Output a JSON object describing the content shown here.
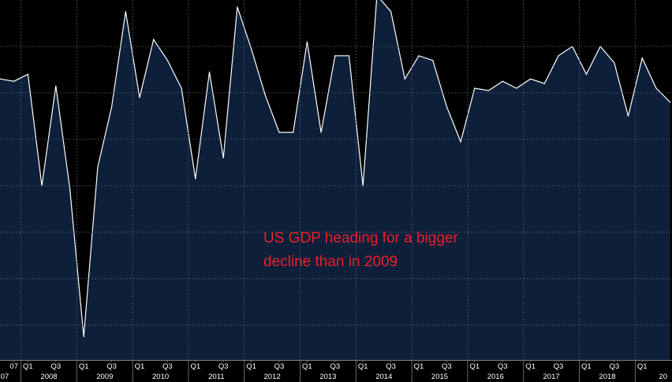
{
  "colors": {
    "background": "#000000",
    "area_fill": "#0e1f3a",
    "line": "#ffffff",
    "grid": "#4a5a70",
    "axis_text": "#ffffff",
    "annotation": "#e8202a"
  },
  "annotation": {
    "line1": "US GDP heading for a bigger",
    "line2": "decline than in 2009"
  },
  "chart_data": {
    "type": "area",
    "title": "",
    "xlabel": "",
    "ylabel": "",
    "ylim": [
      -9.5,
      6
    ],
    "grid": true,
    "x": [
      "2007 Q3",
      "2007 Q4",
      "2008 Q1",
      "2008 Q2",
      "2008 Q3",
      "2008 Q4",
      "2009 Q1",
      "2009 Q2",
      "2009 Q3",
      "2009 Q4",
      "2010 Q1",
      "2010 Q2",
      "2010 Q3",
      "2010 Q4",
      "2011 Q1",
      "2011 Q2",
      "2011 Q3",
      "2011 Q4",
      "2012 Q1",
      "2012 Q2",
      "2012 Q3",
      "2012 Q4",
      "2013 Q1",
      "2013 Q2",
      "2013 Q3",
      "2013 Q4",
      "2014 Q1",
      "2014 Q2",
      "2014 Q3",
      "2014 Q4",
      "2015 Q1",
      "2015 Q2",
      "2015 Q3",
      "2015 Q4",
      "2016 Q1",
      "2016 Q2",
      "2016 Q3",
      "2016 Q4",
      "2017 Q1",
      "2017 Q2",
      "2017 Q3",
      "2017 Q4",
      "2018 Q1",
      "2018 Q2",
      "2018 Q3",
      "2018 Q4",
      "2019 Q1",
      "2019 Q2",
      "2019 Q3"
    ],
    "values": [
      2.6,
      2.5,
      2.8,
      -2.0,
      2.3,
      -2.1,
      -8.5,
      -1.2,
      1.4,
      5.5,
      1.8,
      4.3,
      3.4,
      2.2,
      -1.7,
      2.9,
      -0.8,
      5.7,
      3.9,
      1.9,
      0.3,
      0.3,
      4.2,
      0.3,
      3.6,
      3.6,
      -2.0,
      6.2,
      5.5,
      2.6,
      3.6,
      3.4,
      1.4,
      -0.1,
      2.2,
      2.1,
      2.5,
      2.2,
      2.6,
      2.4,
      3.6,
      4.0,
      2.8,
      4.0,
      3.3,
      1.0,
      3.5,
      2.2,
      1.6
    ],
    "tick_labels": [
      {
        "at": "2007 Q4",
        "label": "07"
      },
      {
        "at": "2008 Q1",
        "label": "Q1"
      },
      {
        "at": "2008 Q3",
        "label": "Q3"
      },
      {
        "at": "2009 Q1",
        "label": "Q1"
      },
      {
        "at": "2009 Q3",
        "label": "Q3"
      },
      {
        "at": "2010 Q1",
        "label": "Q1"
      },
      {
        "at": "2010 Q3",
        "label": "Q3"
      },
      {
        "at": "2011 Q1",
        "label": "Q1"
      },
      {
        "at": "2011 Q3",
        "label": "Q3"
      },
      {
        "at": "2012 Q1",
        "label": "Q1"
      },
      {
        "at": "2012 Q3",
        "label": "Q3"
      },
      {
        "at": "2013 Q1",
        "label": "Q1"
      },
      {
        "at": "2013 Q3",
        "label": "Q3"
      },
      {
        "at": "2014 Q1",
        "label": "Q1"
      },
      {
        "at": "2014 Q3",
        "label": "Q3"
      },
      {
        "at": "2015 Q1",
        "label": "Q1"
      },
      {
        "at": "2015 Q3",
        "label": "Q3"
      },
      {
        "at": "2016 Q1",
        "label": "Q1"
      },
      {
        "at": "2016 Q3",
        "label": "Q3"
      },
      {
        "at": "2017 Q1",
        "label": "Q1"
      },
      {
        "at": "2017 Q3",
        "label": "Q3"
      },
      {
        "at": "2018 Q1",
        "label": "Q1"
      },
      {
        "at": "2018 Q3",
        "label": "Q3"
      },
      {
        "at": "2019 Q1",
        "label": "Q1"
      }
    ],
    "year_labels": [
      {
        "year": "2007",
        "label": "07"
      },
      {
        "year": "2008",
        "label": "2008"
      },
      {
        "year": "2009",
        "label": "2009"
      },
      {
        "year": "2010",
        "label": "2010"
      },
      {
        "year": "2011",
        "label": "2011"
      },
      {
        "year": "2012",
        "label": "2012"
      },
      {
        "year": "2013",
        "label": "2013"
      },
      {
        "year": "2014",
        "label": "2014"
      },
      {
        "year": "2015",
        "label": "2015"
      },
      {
        "year": "2016",
        "label": "2016"
      },
      {
        "year": "2017",
        "label": "2017"
      },
      {
        "year": "2018",
        "label": "2018"
      },
      {
        "year": "2019",
        "label": "20"
      }
    ]
  }
}
